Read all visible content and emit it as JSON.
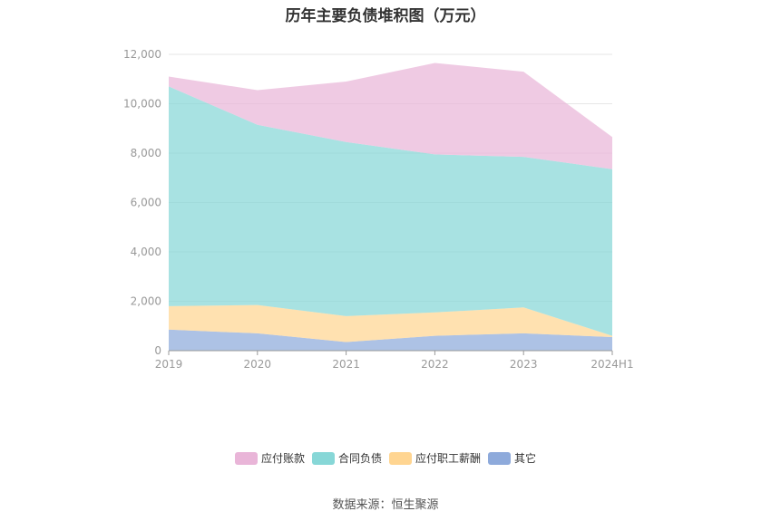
{
  "chart_data": {
    "type": "area",
    "stacked": true,
    "title": "历年主要负债堆积图（万元）",
    "categories": [
      "2019",
      "2020",
      "2021",
      "2022",
      "2023",
      "2024H1"
    ],
    "ylim": [
      0,
      12000
    ],
    "yticks": [
      "0",
      "2,000",
      "4,000",
      "6,000",
      "8,000",
      "10,000",
      "12,000"
    ],
    "ytick_values": [
      0,
      2000,
      4000,
      6000,
      8000,
      10000,
      12000
    ],
    "grid": true,
    "legend_position": "bottom",
    "series": [
      {
        "name": "其它",
        "color": "#8eaadb",
        "values": [
          850,
          700,
          350,
          600,
          700,
          550
        ]
      },
      {
        "name": "应付职工薪酬",
        "color": "#ffd591",
        "values": [
          950,
          1150,
          1050,
          950,
          1050,
          50
        ]
      },
      {
        "name": "合同负债",
        "color": "#87d7d7",
        "values": [
          8900,
          7300,
          7050,
          6400,
          6100,
          6750
        ]
      },
      {
        "name": "应付账款",
        "color": "#e9b5d8",
        "values": [
          400,
          1400,
          2450,
          3700,
          3450,
          1300
        ]
      }
    ],
    "legend_order": [
      "应付账款",
      "合同负债",
      "应付职工薪酬",
      "其它"
    ]
  },
  "source_text": "数据来源：恒生聚源"
}
